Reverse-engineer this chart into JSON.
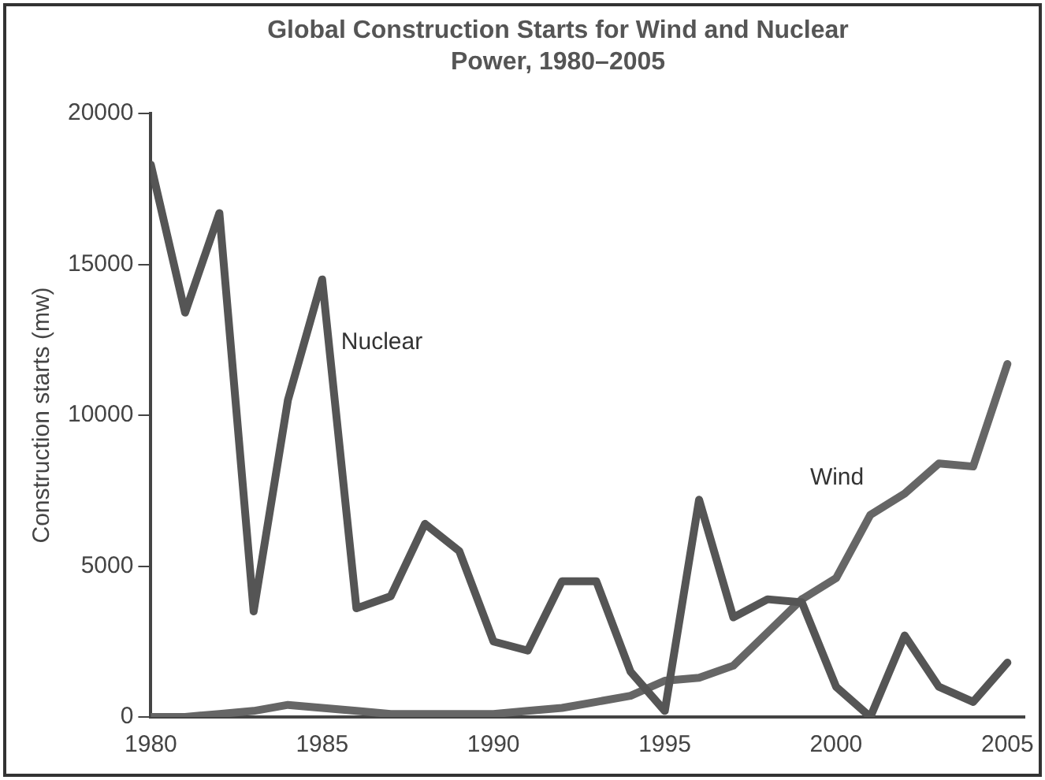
{
  "chart_data": {
    "type": "line",
    "title": "Global Construction Starts for Wind and Nuclear Power, 1980–2005",
    "ylabel": "Construction starts (mw)",
    "x": [
      1980,
      1981,
      1982,
      1983,
      1984,
      1985,
      1986,
      1987,
      1988,
      1989,
      1990,
      1991,
      1992,
      1993,
      1994,
      1995,
      1996,
      1997,
      1998,
      1999,
      2000,
      2001,
      2002,
      2003,
      2004,
      2005
    ],
    "series": [
      {
        "name": "Nuclear",
        "color": "#555555",
        "values": [
          18300,
          13400,
          16700,
          3500,
          10500,
          14500,
          3600,
          4000,
          6400,
          5500,
          2500,
          2200,
          4500,
          4500,
          1500,
          200,
          7200,
          3300,
          3900,
          3800,
          1000,
          0,
          2700,
          1000,
          500,
          1800
        ]
      },
      {
        "name": "Wind",
        "color": "#666666",
        "values": [
          0,
          0,
          100,
          200,
          400,
          300,
          200,
          100,
          100,
          100,
          100,
          200,
          300,
          500,
          700,
          1200,
          1300,
          1700,
          2800,
          3900,
          4600,
          6700,
          7400,
          8400,
          8300,
          11700
        ]
      }
    ],
    "xlim": [
      1980,
      2005.5
    ],
    "xticks": [
      1980,
      1985,
      1990,
      1995,
      2000,
      2005
    ],
    "ylim": [
      0,
      20000
    ],
    "yticks": [
      0,
      5000,
      10000,
      15000,
      20000
    ],
    "grid": false,
    "legend": false,
    "marker": "none",
    "line_style": "solid"
  }
}
